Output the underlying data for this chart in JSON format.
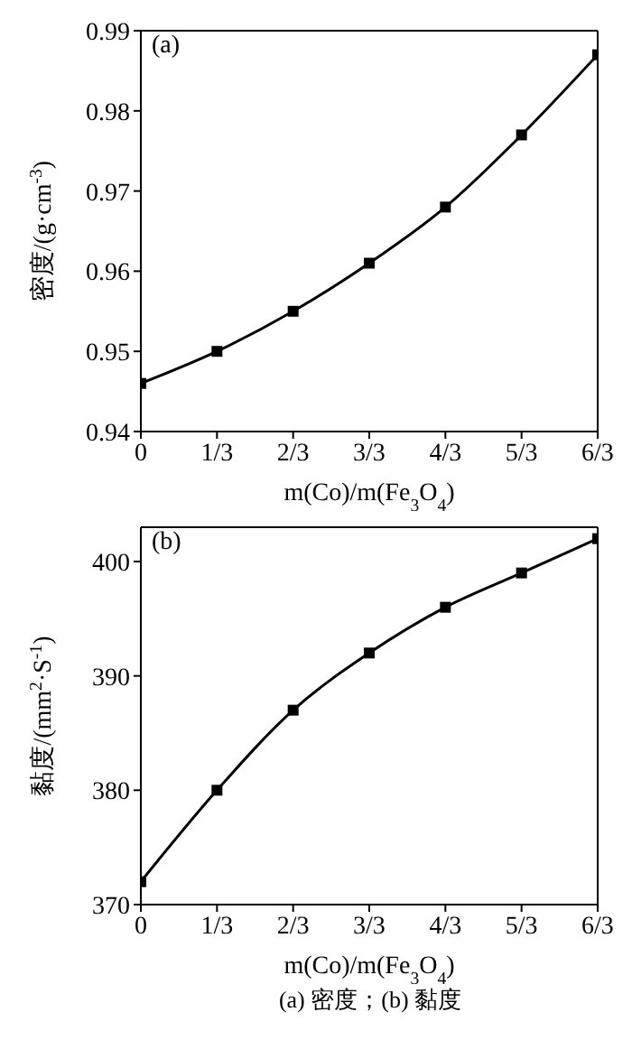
{
  "chart_data": [
    {
      "type": "line",
      "categories": [
        "0",
        "1/3",
        "2/3",
        "3/3",
        "4/3",
        "5/3",
        "6/3"
      ],
      "values": [
        0.946,
        0.95,
        0.955,
        0.961,
        0.968,
        0.977,
        0.987
      ],
      "color": "#000000",
      "marker": "square",
      "xlabel": "m(Co)/m(Fe$_{3}$O$_{4}$)",
      "ylabel": "密度/(g·cm$^{-3}$)",
      "ylim": [
        0.94,
        0.99
      ],
      "yticks": [
        0.94,
        0.95,
        0.96,
        0.97,
        0.98,
        0.99
      ],
      "annotations": [
        "(a)"
      ]
    },
    {
      "type": "line",
      "categories": [
        "0",
        "1/3",
        "2/3",
        "3/3",
        "4/3",
        "5/3",
        "6/3"
      ],
      "values": [
        372,
        380,
        387,
        392,
        396,
        399,
        402
      ],
      "color": "#000000",
      "marker": "square",
      "xlabel": "m(Co)/m(Fe$_{3}$O$_{4}$)",
      "ylabel": "黏度/(mm$^{2}$·S$^{-1}$)",
      "ylim": [
        370,
        403
      ],
      "yticks": [
        370,
        380,
        390,
        400
      ],
      "annotations": [
        "(b)",
        "(a) 密度；(b) 黏度"
      ]
    }
  ]
}
